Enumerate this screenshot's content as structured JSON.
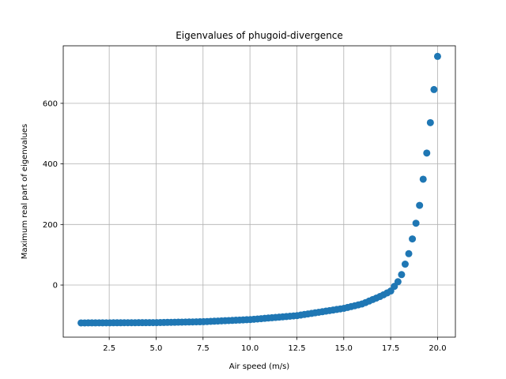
{
  "chart_data": {
    "type": "scatter",
    "title": "Eigenvalues of phugoid-divergence",
    "xlabel": "Air speed (m/s)",
    "ylabel": "Maximum real part of eigenvalues",
    "xlim": [
      0.05,
      20.95
    ],
    "ylim": [
      -172,
      790
    ],
    "xticks": [
      2.5,
      5.0,
      7.5,
      10.0,
      12.5,
      15.0,
      17.5,
      20.0
    ],
    "xtick_labels": [
      "2.5",
      "5.0",
      "7.5",
      "10.0",
      "12.5",
      "15.0",
      "17.5",
      "20.0"
    ],
    "yticks": [
      0,
      200,
      400,
      600
    ],
    "ytick_labels": [
      "0",
      "200",
      "400",
      "600"
    ],
    "grid": true,
    "marker_color": "#1f77b4",
    "x_range": [
      1.0,
      20.0
    ],
    "n_points": 100,
    "y_anchor_points": {
      "x": [
        1.0,
        5.0,
        7.5,
        10.0,
        12.5,
        15.0,
        16.0,
        17.0,
        17.5,
        18.0,
        18.5,
        19.0,
        19.5,
        20.0
      ],
      "y": [
        -125,
        -124,
        -121,
        -114,
        -101,
        -77,
        -62,
        -36,
        -20,
        20,
        110,
        245,
        470,
        755
      ]
    }
  }
}
